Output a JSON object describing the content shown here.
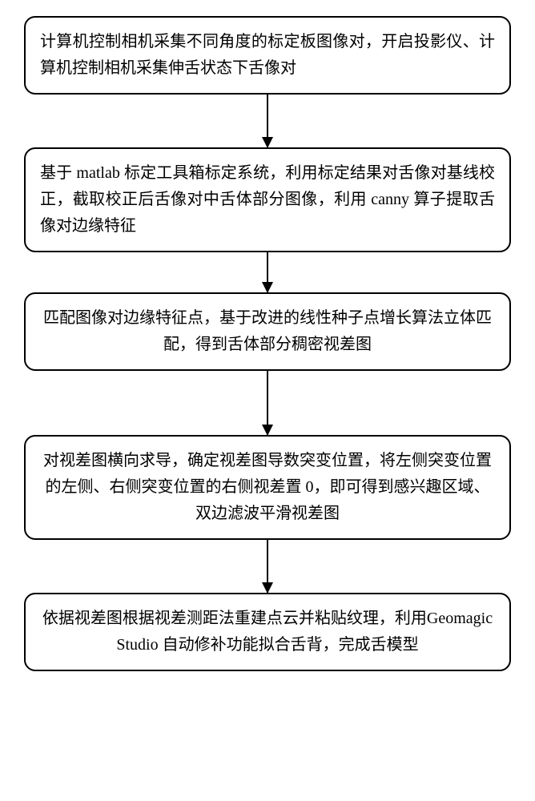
{
  "flow": {
    "type": "flowchart",
    "orientation": "vertical",
    "background_color": "#ffffff",
    "box_border_color": "#000000",
    "box_border_width": 2,
    "box_border_radius": 14,
    "arrow_color": "#000000",
    "arrowhead_width": 14,
    "arrowhead_height": 14,
    "font_family": "SimSun",
    "font_size_pt": 15,
    "line_height": 1.65,
    "nodes": [
      {
        "id": "step1",
        "text": "计算机控制相机采集不同角度的标定板图像对，开启投影仪、计算机控制相机采集伸舌状态下舌像对",
        "align": "left",
        "arrow_after_length": 66
      },
      {
        "id": "step2",
        "text": "基于 matlab 标定工具箱标定系统，利用标定结果对舌像对基线校正，截取校正后舌像对中舌体部分图像，利用 canny 算子提取舌像对边缘特征",
        "align": "left",
        "arrow_after_length": 50
      },
      {
        "id": "step3",
        "text": "匹配图像对边缘特征点，基于改进的线性种子点增长算法立体匹配，得到舌体部分稠密视差图",
        "align": "center",
        "arrow_after_length": 80
      },
      {
        "id": "step4",
        "text": "对视差图横向求导，确定视差图导数突变位置，将左侧突变位置的左侧、右侧突变位置的右侧视差置 0，即可得到感兴趣区域、双边滤波平滑视差图",
        "align": "center",
        "arrow_after_length": 66
      },
      {
        "id": "step5",
        "text": "依据视差图根据视差测距法重建点云并粘贴纹理，利用Geomagic Studio 自动修补功能拟合舌背，完成舌模型",
        "align": "center",
        "arrow_after_length": 0
      }
    ]
  }
}
